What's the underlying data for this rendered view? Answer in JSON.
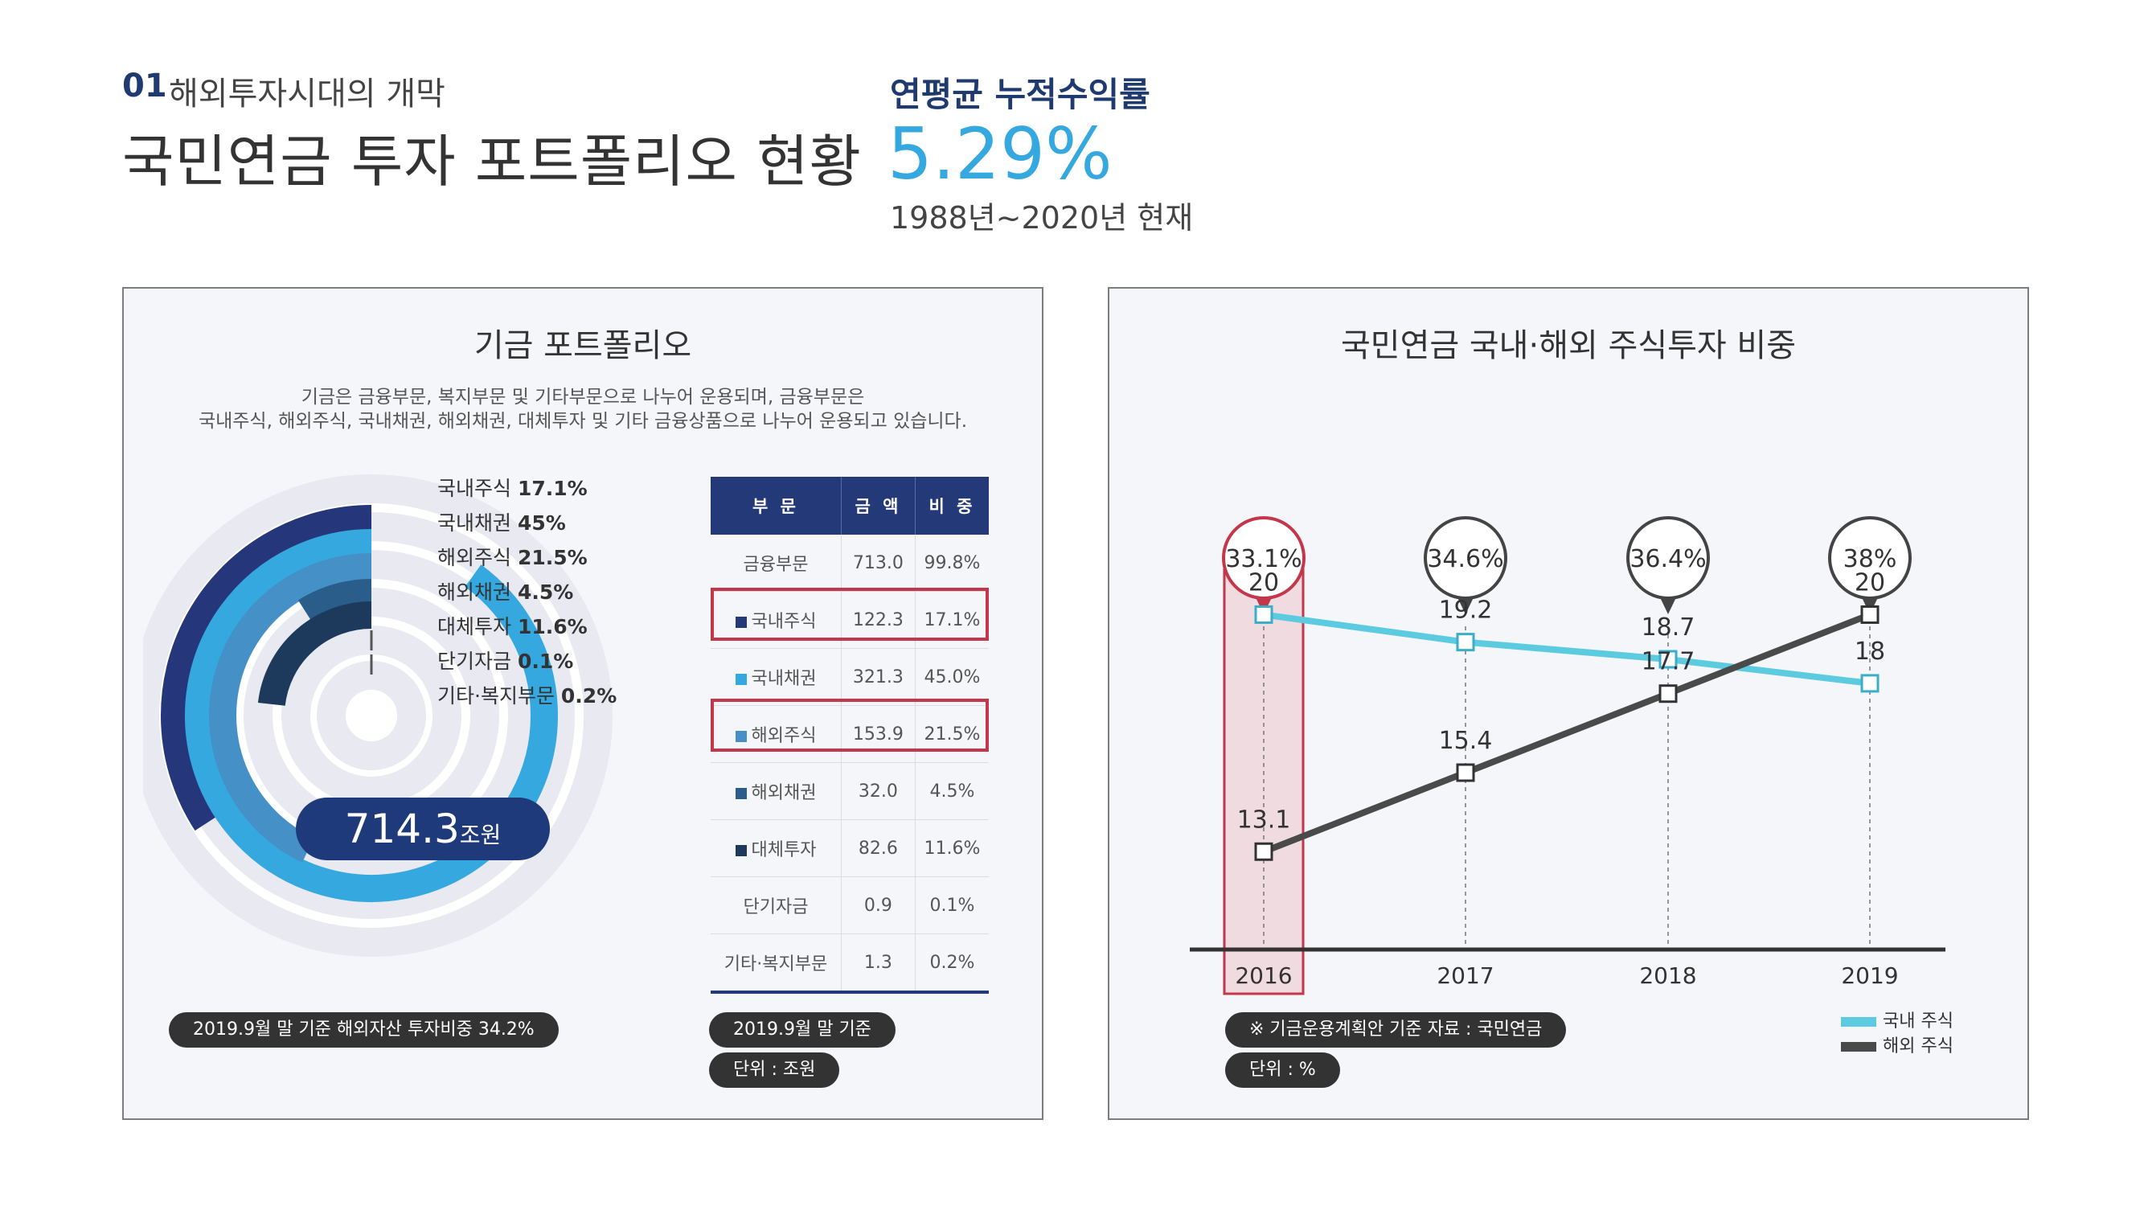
{
  "header": {
    "section_number": "01",
    "section_title": "해외투자시대의 개막",
    "page_title": "국민연금 투자 포트폴리오 현황",
    "return_label": "연평균 누적수익률",
    "return_value": "5.29%",
    "return_period": "1988년~2020년 현재"
  },
  "left_panel": {
    "title": "기금 포트폴리오",
    "desc_line1": "기금은 금융부문, 복지부문 및 기타부문으로 나누어 운용되며, 금융부문은",
    "desc_line2": "국내주식, 해외주식, 국내채권, 해외채권, 대체투자 및 기타 금융상품으로 나누어 운용되고 있습니다.",
    "total_value": "714.3",
    "total_unit": "조원",
    "note": "2019.9월 말 기준 해외자산 투자비중 34.2%",
    "table_note_date": "2019.9월 말 기준",
    "table_note_unit": "단위 : 조원",
    "legend": [
      {
        "name": "국내주식",
        "value": "17.1%"
      },
      {
        "name": "국내채권",
        "value": "45%"
      },
      {
        "name": "해외주식",
        "value": "21.5%"
      },
      {
        "name": "해외채권",
        "value": "4.5%"
      },
      {
        "name": "대체투자",
        "value": "11.6%"
      },
      {
        "name": "단기자금",
        "value": "0.1%"
      },
      {
        "name": "기타·복지부문",
        "value": "0.2%"
      }
    ],
    "table": {
      "headers": [
        "부 문",
        "금 액",
        "비 중"
      ],
      "rows": [
        {
          "name": "금융부문",
          "amount": "713.0",
          "share": "99.8%",
          "color": ""
        },
        {
          "name": "국내주식",
          "amount": "122.3",
          "share": "17.1%",
          "color": "#243a78"
        },
        {
          "name": "국내채권",
          "amount": "321.3",
          "share": "45.0%",
          "color": "#35a8e0"
        },
        {
          "name": "해외주식",
          "amount": "153.9",
          "share": "21.5%",
          "color": "#4690c8"
        },
        {
          "name": "해외채권",
          "amount": "32.0",
          "share": "4.5%",
          "color": "#2a5d8a"
        },
        {
          "name": "대체투자",
          "amount": "82.6",
          "share": "11.6%",
          "color": "#1d3a5c"
        },
        {
          "name": "단기자금",
          "amount": "0.9",
          "share": "0.1%",
          "color": ""
        },
        {
          "name": "기타·복지부문",
          "amount": "1.3",
          "share": "0.2%",
          "color": ""
        }
      ]
    }
  },
  "chart_data": [
    {
      "type": "radial_bar",
      "title": "기금 포트폴리오",
      "categories": [
        "국내주식",
        "국내채권",
        "해외주식",
        "해외채권",
        "대체투자",
        "단기자금",
        "기타·복지부문"
      ],
      "values": [
        17.1,
        45,
        21.5,
        4.5,
        11.6,
        0.1,
        0.2
      ],
      "colors": [
        "#25377a",
        "#35a8e0",
        "#4690c8",
        "#2a5d8a",
        "#1d3a5c",
        "#555555",
        "#555555"
      ]
    },
    {
      "type": "line",
      "title": "국민연금 국내·해외 주식투자 비중",
      "x": [
        "2016",
        "2017",
        "2018",
        "2019"
      ],
      "series": [
        {
          "name": "국내 주식",
          "values": [
            20,
            19.2,
            18.7,
            18
          ],
          "labels": [
            "20",
            "19.2",
            "18.7",
            "18"
          ],
          "color": "#5ccbe0"
        },
        {
          "name": "해외 주식",
          "values": [
            13.1,
            15.4,
            17.7,
            20
          ],
          "labels": [
            "13.1",
            "15.4",
            "17.7",
            "20"
          ],
          "color": "#4a4a4a"
        }
      ],
      "totals": [
        "33.1%",
        "34.6%",
        "36.4%",
        "38%"
      ],
      "highlight_year": "2016",
      "ylim": [
        11,
        22
      ],
      "note_source": "※ 기금운용계획안 기준 자료 : 국민연금",
      "note_unit": "단위 : %"
    }
  ]
}
